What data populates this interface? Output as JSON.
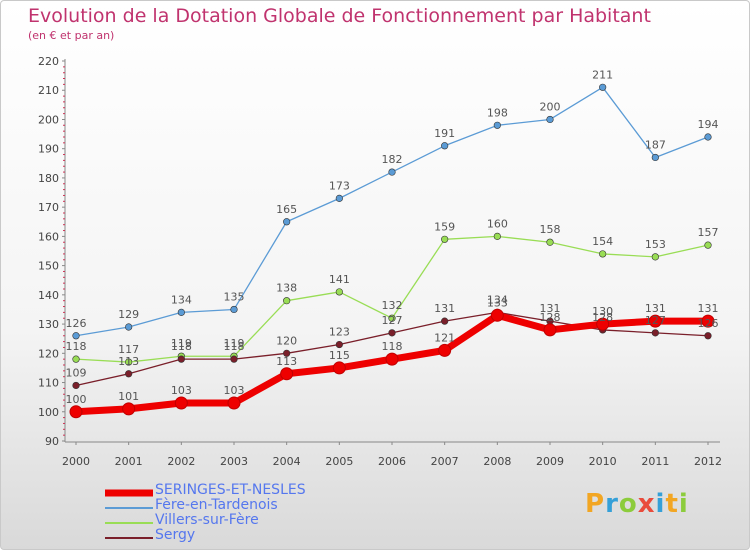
{
  "header": {
    "title": "Evolution de la Dotation Globale de Fonctionnement par Habitant",
    "subtitle": "(en € et par an)"
  },
  "logo": {
    "letters": [
      "P",
      "r",
      "o",
      "x",
      "i",
      "t",
      "i"
    ],
    "colors": [
      "#f2a623",
      "#35a0d8",
      "#8ccc3c",
      "#e94b3c",
      "#35a0d8",
      "#f2a623",
      "#8ccc3c"
    ]
  },
  "chart_data": {
    "type": "line",
    "title": "Evolution de la Dotation Globale de Fonctionnement par Habitant",
    "subtitle": "(en € et par an)",
    "xlabel": "",
    "ylabel": "",
    "x": [
      "2000",
      "2001",
      "2002",
      "2003",
      "2004",
      "2005",
      "2006",
      "2007",
      "2008",
      "2009",
      "2010",
      "2011",
      "2012"
    ],
    "ylim": [
      90,
      220
    ],
    "yticks": [
      90,
      100,
      110,
      120,
      130,
      140,
      150,
      160,
      170,
      180,
      190,
      200,
      210,
      220
    ],
    "grid": false,
    "legend_position": "bottom-left",
    "series": [
      {
        "name": "Fère-en-Tardenois",
        "color": "#5b9bd5",
        "values": [
          126,
          129,
          134,
          135,
          165,
          173,
          182,
          191,
          198,
          200,
          211,
          187,
          194
        ]
      },
      {
        "name": "Villers-sur-Fère",
        "color": "#99dd55",
        "values": [
          118,
          117,
          119,
          119,
          138,
          141,
          132,
          159,
          160,
          158,
          154,
          153,
          157
        ]
      },
      {
        "name": "Sergy",
        "color": "#7a1f2a",
        "values": [
          109,
          113,
          118,
          118,
          120,
          123,
          127,
          131,
          134,
          131,
          128,
          127,
          126
        ]
      },
      {
        "name": "SERINGES-ET-NESLES",
        "color": "#ee0000",
        "values": [
          100,
          101,
          103,
          103,
          113,
          115,
          118,
          121,
          133,
          128,
          130,
          131,
          131
        ]
      }
    ]
  }
}
